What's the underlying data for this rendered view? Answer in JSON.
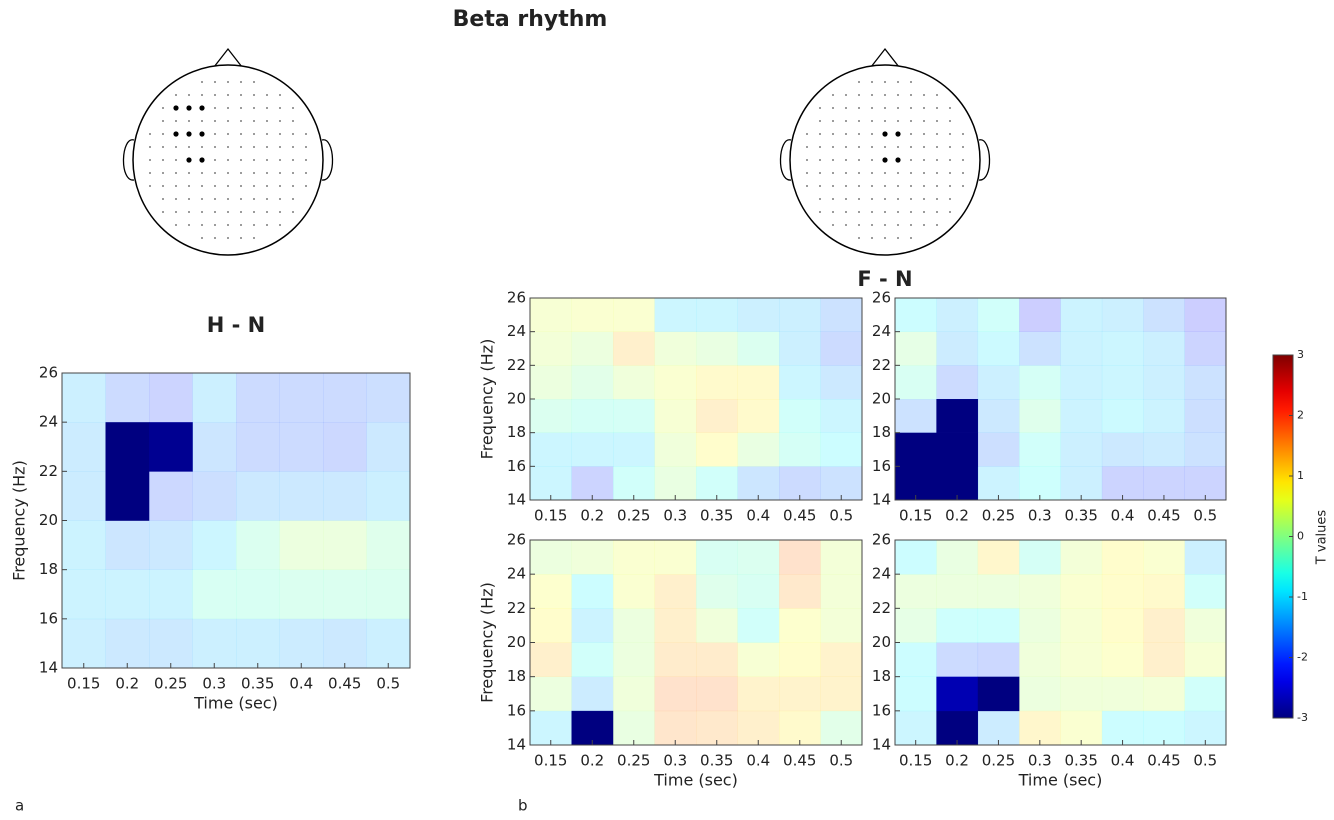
{
  "title": "Beta rhythm",
  "panels": [
    {
      "label": "a"
    },
    {
      "label": "b",
      "title": "F - N"
    }
  ],
  "colorbar": {
    "label": "T values",
    "lim": [
      -3,
      3
    ],
    "ticks": [
      -3,
      -2,
      -1,
      0,
      1,
      2,
      3
    ],
    "colormap": "jet"
  },
  "chart_data": [
    {
      "type": "heatmap",
      "title": "H - N",
      "x_label": "Time (sec)",
      "y_label": "Frequency (Hz)",
      "x": [
        "0.15",
        "0.2",
        "0.25",
        "0.3",
        "0.35",
        "0.4",
        "0.45",
        "0.5"
      ],
      "ylim": [
        14,
        26
      ],
      "yticks": [
        14,
        16,
        18,
        20,
        22,
        24,
        26
      ],
      "values": [
        [
          -1.2,
          -1.4,
          -1.4,
          -1.2,
          -1.2,
          -1.3,
          -1.4,
          -1.2
        ],
        [
          -1.1,
          -1.1,
          -1.1,
          -0.4,
          -0.4,
          -0.3,
          -0.3,
          -0.3
        ],
        [
          -1.1,
          -1.5,
          -1.4,
          -1,
          -0.3,
          0.2,
          0.2,
          -0.2
        ],
        [
          -1.3,
          -3,
          -1.9,
          -1.7,
          -1.4,
          -1.4,
          -1.4,
          -1.2
        ],
        [
          -1.3,
          -3,
          -2.9,
          -1.5,
          -1.8,
          -1.8,
          -1.9,
          -1.4
        ],
        [
          -1.2,
          -1.8,
          -2,
          -1.2,
          -1.8,
          -1.8,
          -1.8,
          -1.7
        ]
      ]
    },
    {
      "type": "heatmap",
      "y_label": "Frequency (Hz)",
      "x": [
        "0.15",
        "0.2",
        "0.25",
        "0.3",
        "0.35",
        "0.4",
        "0.45",
        "0.5"
      ],
      "ylim": [
        14,
        26
      ],
      "yticks": [
        14,
        16,
        18,
        20,
        22,
        24,
        26
      ],
      "values": [
        [
          -1,
          -2,
          -0.6,
          0.1,
          -0.6,
          -1.5,
          -1.8,
          -1.6
        ],
        [
          -1,
          -1,
          -1,
          0.3,
          0.8,
          0.1,
          -0.5,
          -0.8
        ],
        [
          -0.3,
          -0.5,
          -0.5,
          0.5,
          1.2,
          0.9,
          -0.6,
          -1
        ],
        [
          0.2,
          -0.1,
          0.3,
          0.6,
          0.9,
          0.9,
          -1,
          -1.4
        ],
        [
          0.4,
          0.2,
          1.2,
          0.3,
          0.1,
          -0.3,
          -1.2,
          -1.8
        ],
        [
          0.5,
          0.6,
          0.6,
          -1,
          -1,
          -1.2,
          -1.2,
          -1.6
        ]
      ]
    },
    {
      "type": "heatmap",
      "x": [
        "0.15",
        "0.2",
        "0.25",
        "0.3",
        "0.35",
        "0.4",
        "0.45",
        "0.5"
      ],
      "ylim": [
        14,
        26
      ],
      "yticks": [
        14,
        16,
        18,
        20,
        22,
        24,
        26
      ],
      "values": [
        [
          -3,
          -3,
          -1.1,
          -0.7,
          -1.2,
          -2,
          -2,
          -2
        ],
        [
          -3,
          -3,
          -1.7,
          -0.6,
          -1.2,
          -1.4,
          -1.3,
          -1.6
        ],
        [
          -1.6,
          -3,
          -1.4,
          -0.2,
          -1.1,
          -0.9,
          -1.1,
          -1.7
        ],
        [
          -0.4,
          -1.8,
          -1.2,
          -0.5,
          -1.1,
          -1,
          -1.2,
          -1.6
        ],
        [
          0,
          -1.3,
          -0.9,
          -1.6,
          -1.1,
          -1,
          -1.2,
          -2
        ],
        [
          -0.8,
          -1.2,
          -0.6,
          -2.2,
          -1.1,
          -1.2,
          -1.6,
          -2.2
        ]
      ]
    },
    {
      "type": "heatmap",
      "x_label": "Time (sec)",
      "y_label": "Frequency (Hz)",
      "x": [
        "0.15",
        "0.2",
        "0.25",
        "0.3",
        "0.35",
        "0.4",
        "0.45",
        "0.5"
      ],
      "ylim": [
        14,
        26
      ],
      "yticks": [
        14,
        16,
        18,
        20,
        22,
        24,
        26
      ],
      "values": [
        [
          -1,
          -3,
          0.1,
          1.5,
          1.4,
          1.2,
          0.9,
          -0.1
        ],
        [
          0.2,
          -1.3,
          0.3,
          1.6,
          1.6,
          1.1,
          1.1,
          1.1
        ],
        [
          1.2,
          -0.6,
          0.2,
          1.3,
          1.3,
          0.5,
          0.8,
          1.1
        ],
        [
          0.8,
          -1.1,
          0.2,
          1.2,
          0.3,
          -0.6,
          0.7,
          0.4
        ],
        [
          0.7,
          -0.8,
          0.6,
          1.2,
          -0.2,
          -0.4,
          1.4,
          0.4
        ],
        [
          0.2,
          0.3,
          0.6,
          0.6,
          -0.4,
          -0.3,
          1.6,
          0.4
        ]
      ]
    },
    {
      "type": "heatmap",
      "x_label": "Time (sec)",
      "x": [
        "0.15",
        "0.2",
        "0.25",
        "0.3",
        "0.35",
        "0.4",
        "0.45",
        "0.5"
      ],
      "ylim": [
        14,
        26
      ],
      "yticks": [
        14,
        16,
        18,
        20,
        22,
        24,
        26
      ],
      "values": [
        [
          -1,
          -3,
          -1.3,
          1,
          0.6,
          -0.8,
          -0.8,
          -1
        ],
        [
          -0.8,
          -2.7,
          -3,
          0.2,
          0.3,
          0.3,
          0.4,
          -0.6
        ],
        [
          -0.8,
          -1.8,
          -1.9,
          0.3,
          0.5,
          0.7,
          1.2,
          0.5
        ],
        [
          0,
          -0.7,
          -0.7,
          0.2,
          0.5,
          0.8,
          1.2,
          0.3
        ],
        [
          0.2,
          0.2,
          0.2,
          0.3,
          0.6,
          0.8,
          0.9,
          -0.6
        ],
        [
          -0.8,
          0.1,
          1,
          -0.5,
          0.4,
          0.8,
          0.6,
          -1.2
        ]
      ]
    }
  ]
}
